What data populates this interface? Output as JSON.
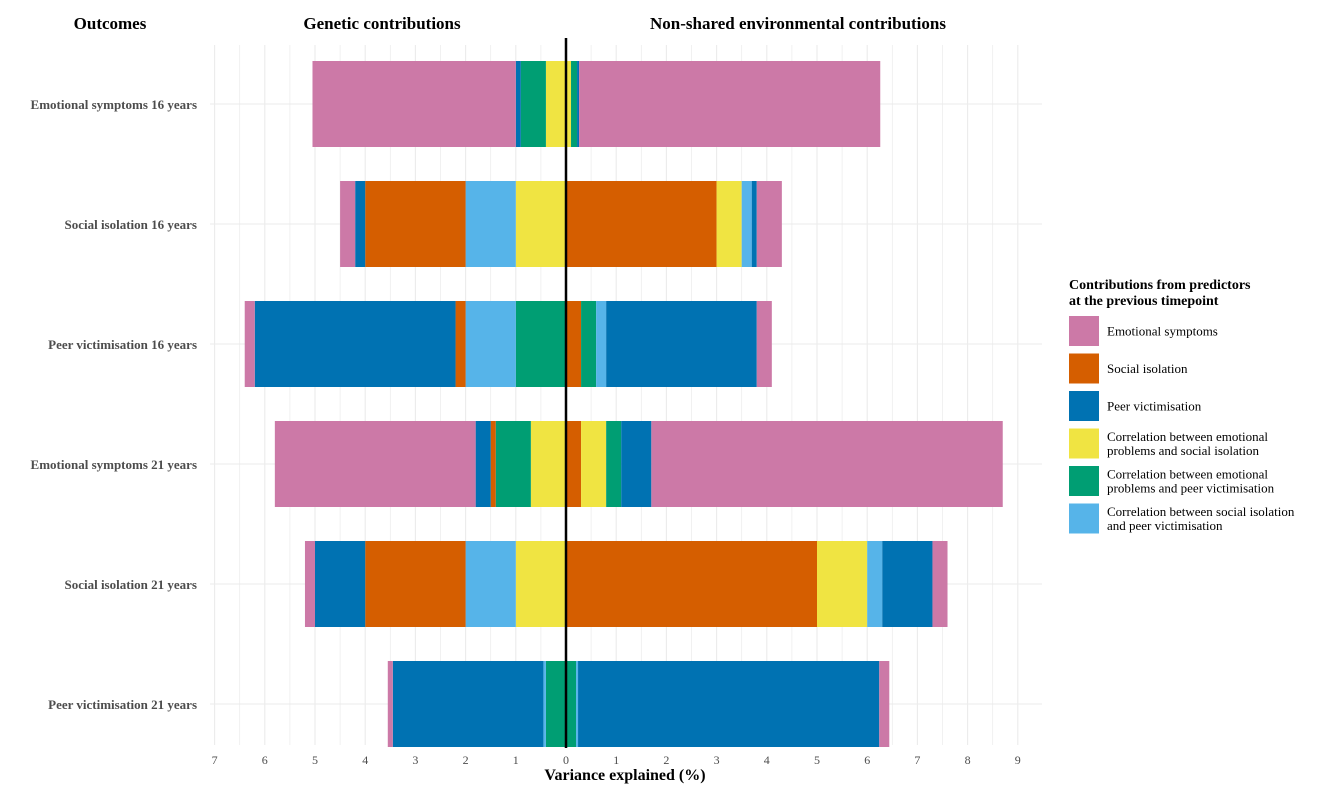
{
  "headers": {
    "outcomes": "Outcomes",
    "genetic": "Genetic contributions",
    "environmental": "Non-shared environmental contributions"
  },
  "chart_data": {
    "type": "bar",
    "orientation": "horizontal-diverging",
    "xlabel": "Variance explained (%)",
    "genetic_ticks": [
      "7",
      "6",
      "5",
      "4",
      "3",
      "2",
      "1",
      "0"
    ],
    "environmental_ticks": [
      "1",
      "2",
      "3",
      "4",
      "5",
      "6",
      "7",
      "8",
      "9"
    ],
    "xlim": {
      "genetic_max": 7,
      "environmental_max": 9
    },
    "grid": true,
    "legend": {
      "position": "right",
      "title_lines": [
        "Contributions from predictors",
        "at the previous timepoint"
      ]
    },
    "series": [
      {
        "key": "es",
        "label_lines": [
          "Emotional symptoms"
        ],
        "color": "#CC79A7"
      },
      {
        "key": "si",
        "label_lines": [
          "Social isolation"
        ],
        "color": "#D55E00"
      },
      {
        "key": "pv",
        "label_lines": [
          "Peer victimisation"
        ],
        "color": "#0072B2"
      },
      {
        "key": "es_si",
        "label_lines": [
          "Correlation between emotional",
          "problems and social isolation"
        ],
        "color": "#F0E442"
      },
      {
        "key": "es_pv",
        "label_lines": [
          "Correlation between emotional",
          "problems and peer victimisation"
        ],
        "color": "#009E73"
      },
      {
        "key": "si_pv",
        "label_lines": [
          "Correlation between social isolation",
          "and peer victimisation"
        ],
        "color": "#56B4E9"
      }
    ],
    "categories": [
      {
        "label": "Emotional symptoms 16 years",
        "genetic": {
          "es": 4.05,
          "si": 0,
          "pv": 0.1,
          "es_si": 0.4,
          "es_pv": 0.5,
          "si_pv": 0
        },
        "environmental": {
          "es": 6.0,
          "si": 0,
          "pv": 0.04,
          "es_si": 0.1,
          "es_pv": 0.12,
          "si_pv": 0
        }
      },
      {
        "label": "Social isolation 16 years",
        "genetic": {
          "es": 0.3,
          "si": 2.0,
          "pv": 0.2,
          "es_si": 1.0,
          "es_pv": 0,
          "si_pv": 1.0
        },
        "environmental": {
          "es": 0.5,
          "si": 3.0,
          "pv": 0.1,
          "es_si": 0.5,
          "es_pv": 0,
          "si_pv": 0.2
        }
      },
      {
        "label": "Peer victimisation 16 years",
        "genetic": {
          "es": 0.2,
          "si": 0.2,
          "pv": 4.0,
          "es_si": 0,
          "es_pv": 1.0,
          "si_pv": 1.0
        },
        "environmental": {
          "es": 0.3,
          "si": 0.3,
          "pv": 3.0,
          "es_si": 0,
          "es_pv": 0.3,
          "si_pv": 0.2
        }
      },
      {
        "label": "Emotional symptoms 21 years",
        "genetic": {
          "es": 4.0,
          "si": 0.1,
          "pv": 0.3,
          "es_si": 0.7,
          "es_pv": 0.7,
          "si_pv": 0
        },
        "environmental": {
          "es": 7.0,
          "si": 0.3,
          "pv": 0.6,
          "es_si": 0.5,
          "es_pv": 0.3,
          "si_pv": 0
        }
      },
      {
        "label": "Social isolation 21 years",
        "genetic": {
          "es": 0.2,
          "si": 2.0,
          "pv": 1.0,
          "es_si": 1.0,
          "es_pv": 0,
          "si_pv": 1.0
        },
        "environmental": {
          "es": 0.3,
          "si": 5.0,
          "pv": 1.0,
          "es_si": 1.0,
          "es_pv": 0,
          "si_pv": 0.3
        }
      },
      {
        "label": "Peer victimisation 21 years",
        "genetic": {
          "es": 0.1,
          "si": 0,
          "pv": 3.0,
          "es_si": 0,
          "es_pv": 0.4,
          "si_pv": 0.05
        },
        "environmental": {
          "es": 0.2,
          "si": 0,
          "pv": 6.0,
          "es_si": 0,
          "es_pv": 0.2,
          "si_pv": 0.04
        }
      }
    ]
  }
}
